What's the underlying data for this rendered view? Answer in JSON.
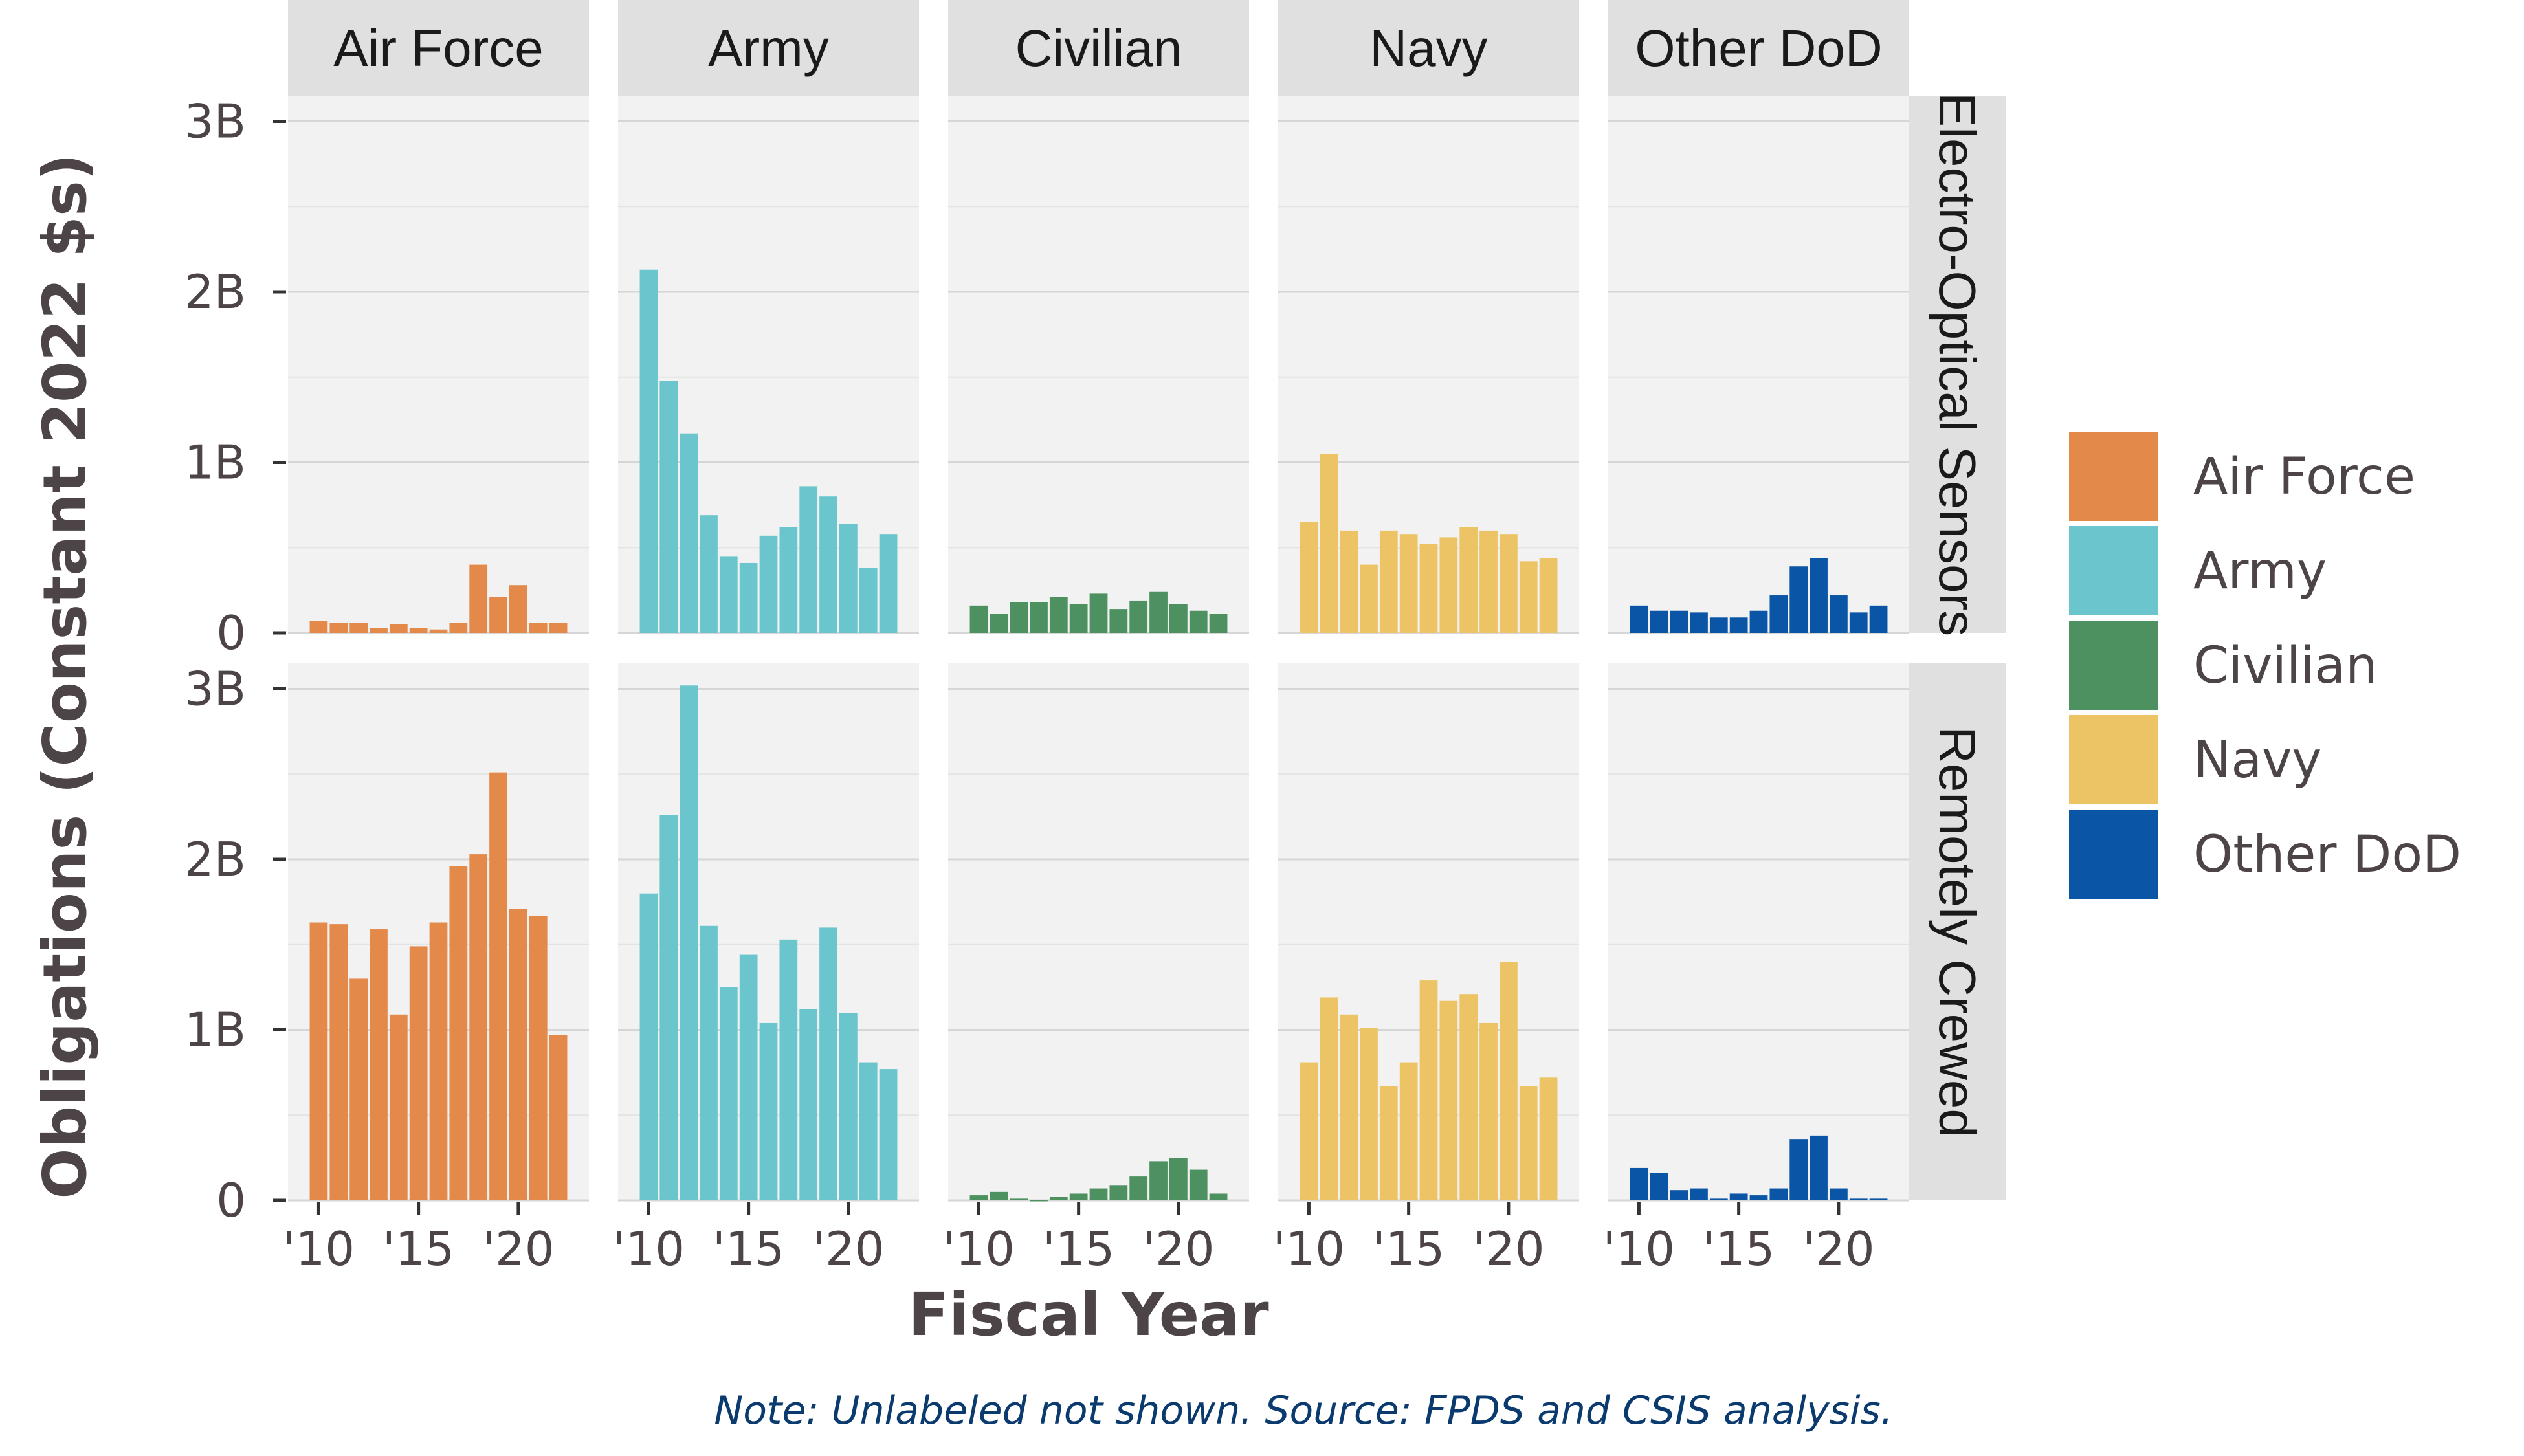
{
  "chart_data": {
    "type": "bar",
    "facet_columns": [
      "Air Force",
      "Army",
      "Civilian",
      "Navy",
      "Other DoD"
    ],
    "facet_rows": [
      "Electro-Optical Sensors",
      "Remotely Crewed"
    ],
    "x": [
      2010,
      2011,
      2012,
      2013,
      2014,
      2015,
      2016,
      2017,
      2018,
      2019,
      2020,
      2021,
      2022
    ],
    "x_tick_values": [
      2010,
      2015,
      2020
    ],
    "x_tick_labels": [
      "'10",
      "'15",
      "'20"
    ],
    "xlabel": "Fiscal Year",
    "ylabel": "Obligations (Constant 2022 $s)",
    "ylim": [
      0,
      3.15
    ],
    "y_unit": "billions",
    "y_tick_values": [
      0,
      1,
      2,
      3
    ],
    "y_tick_labels": [
      "0",
      "1B",
      "2B",
      "3B"
    ],
    "grid": true,
    "legend_title": "",
    "legend_position": "right",
    "caption": "Note: Unlabeled not shown. Source: FPDS and CSIS analysis.",
    "colors": {
      "Air Force": "#e3894a",
      "Army": "#6ac6cc",
      "Civilian": "#4d9160",
      "Navy": "#edc465",
      "Other DoD": "#0b55a6"
    },
    "series": [
      {
        "row": "Electro-Optical Sensors",
        "column": "Air Force",
        "values": [
          0.07,
          0.06,
          0.06,
          0.03,
          0.05,
          0.03,
          0.02,
          0.06,
          0.4,
          0.21,
          0.28,
          0.06,
          0.06
        ]
      },
      {
        "row": "Electro-Optical Sensors",
        "column": "Army",
        "values": [
          2.13,
          1.48,
          1.17,
          0.69,
          0.45,
          0.41,
          0.57,
          0.62,
          0.86,
          0.8,
          0.64,
          0.38,
          0.58
        ]
      },
      {
        "row": "Electro-Optical Sensors",
        "column": "Civilian",
        "values": [
          0.16,
          0.11,
          0.18,
          0.18,
          0.21,
          0.17,
          0.23,
          0.14,
          0.19,
          0.24,
          0.17,
          0.13,
          0.11
        ]
      },
      {
        "row": "Electro-Optical Sensors",
        "column": "Navy",
        "values": [
          0.65,
          1.05,
          0.6,
          0.4,
          0.6,
          0.58,
          0.52,
          0.56,
          0.62,
          0.6,
          0.58,
          0.42,
          0.44
        ]
      },
      {
        "row": "Electro-Optical Sensors",
        "column": "Other DoD",
        "values": [
          0.16,
          0.13,
          0.13,
          0.12,
          0.09,
          0.09,
          0.13,
          0.22,
          0.39,
          0.44,
          0.22,
          0.12,
          0.16
        ]
      },
      {
        "row": "Remotely Crewed",
        "column": "Air Force",
        "values": [
          1.63,
          1.62,
          1.3,
          1.59,
          1.09,
          1.49,
          1.63,
          1.96,
          2.03,
          2.51,
          1.71,
          1.67,
          0.97
        ]
      },
      {
        "row": "Remotely Crewed",
        "column": "Army",
        "values": [
          1.8,
          2.26,
          3.02,
          1.61,
          1.25,
          1.44,
          1.04,
          1.53,
          1.12,
          1.6,
          1.1,
          0.81,
          0.77
        ]
      },
      {
        "row": "Remotely Crewed",
        "column": "Civilian",
        "values": [
          0.03,
          0.05,
          0.01,
          0.0,
          0.02,
          0.04,
          0.07,
          0.09,
          0.14,
          0.23,
          0.25,
          0.18,
          0.04
        ]
      },
      {
        "row": "Remotely Crewed",
        "column": "Navy",
        "values": [
          0.81,
          1.19,
          1.09,
          1.01,
          0.67,
          0.81,
          1.29,
          1.17,
          1.21,
          1.04,
          1.4,
          0.67,
          0.72
        ]
      },
      {
        "row": "Remotely Crewed",
        "column": "Other DoD",
        "values": [
          0.19,
          0.16,
          0.06,
          0.07,
          0.01,
          0.04,
          0.03,
          0.07,
          0.36,
          0.38,
          0.07,
          0.01,
          0.01
        ]
      }
    ]
  }
}
